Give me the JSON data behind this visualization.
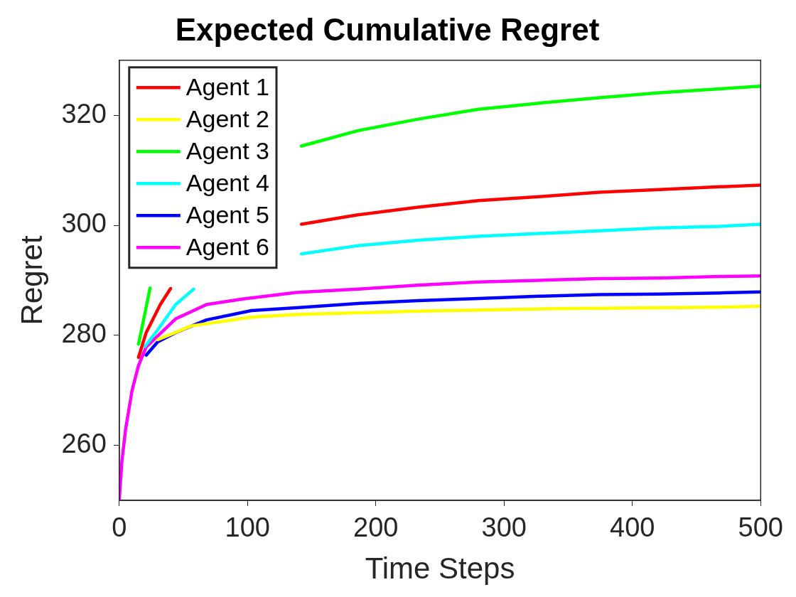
{
  "chart_data": {
    "type": "line",
    "title": "Expected Cumulative Regret",
    "xlabel": "Time Steps",
    "ylabel": "Regret",
    "xlim": [
      0,
      500
    ],
    "xticks": [
      0,
      100,
      200,
      300,
      400,
      500
    ],
    "ylim": [
      250,
      330
    ],
    "yticks": [
      260,
      280,
      300,
      320
    ],
    "grid": false,
    "legend": "top left",
    "marker": "none",
    "line_style": "solid",
    "series": [
      {
        "name": "Agent 1",
        "color": "#ff0000",
        "x": [
          15,
          21,
          32,
          40,
          null,
          142,
          186,
          233,
          280,
          327,
          374,
          421,
          468,
          500
        ],
        "values": [
          276,
          280.5,
          285.6,
          288.5,
          null,
          300.2,
          301.9,
          303.3,
          304.5,
          305.2,
          306,
          306.5,
          307,
          307.3
        ]
      },
      {
        "name": "Agent 2",
        "color": "#ffff00",
        "x": [
          30,
          56,
          103,
          138,
          186,
          233,
          280,
          327,
          374,
          421,
          468,
          500
        ],
        "values": [
          279.2,
          281.7,
          283.3,
          283.8,
          284.1,
          284.4,
          284.6,
          284.8,
          284.9,
          285,
          285.1,
          285.3
        ]
      },
      {
        "name": "Agent 3",
        "color": "#00ff00",
        "x": [
          15,
          20,
          24,
          null,
          142,
          186,
          233,
          280,
          327,
          374,
          421,
          468,
          500
        ],
        "values": [
          278.4,
          284,
          288.6,
          null,
          314.4,
          317.2,
          319.3,
          321.1,
          322.2,
          323.2,
          324.1,
          324.8,
          325.3
        ]
      },
      {
        "name": "Agent 4",
        "color": "#00ffff",
        "x": [
          20,
          30,
          44,
          58,
          null,
          142,
          186,
          233,
          280,
          327,
          374,
          421,
          468,
          500
        ],
        "values": [
          278,
          281,
          285.6,
          288.4,
          null,
          294.8,
          296.3,
          297.3,
          298,
          298.5,
          299,
          299.5,
          299.8,
          300.2
        ]
      },
      {
        "name": "Agent 5",
        "color": "#0000ff",
        "x": [
          21,
          30,
          44,
          68,
          103,
          138,
          186,
          233,
          280,
          327,
          374,
          421,
          468,
          500
        ],
        "values": [
          276.4,
          278.8,
          280.5,
          282.8,
          284.5,
          285,
          285.8,
          286.3,
          286.7,
          287.1,
          287.4,
          287.5,
          287.7,
          287.9
        ]
      },
      {
        "name": "Agent 6",
        "color": "#ff00ff",
        "x": [
          0,
          2,
          5,
          10,
          15,
          21,
          44,
          68,
          96,
          138,
          186,
          233,
          280,
          327,
          374,
          421,
          468,
          500
        ],
        "values": [
          250,
          257,
          263,
          270,
          274.5,
          277.9,
          283,
          285.6,
          286.6,
          287.8,
          288.4,
          289.1,
          289.7,
          290,
          290.3,
          290.4,
          290.7,
          290.8
        ]
      }
    ]
  }
}
